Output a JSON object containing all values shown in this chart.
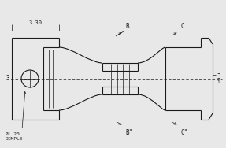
{
  "bg_color": "#e8e8e8",
  "line_color": "#1a1a1a",
  "lw": 0.8,
  "thin_lw": 0.5,
  "annotation_3_30": "3.30",
  "annotation_dimple": "Ø1.20\nDIMPLE",
  "annotation_B": "B",
  "annotation_C": "C",
  "annotation_Bpp": "B\"",
  "annotation_Cpp": "C\""
}
